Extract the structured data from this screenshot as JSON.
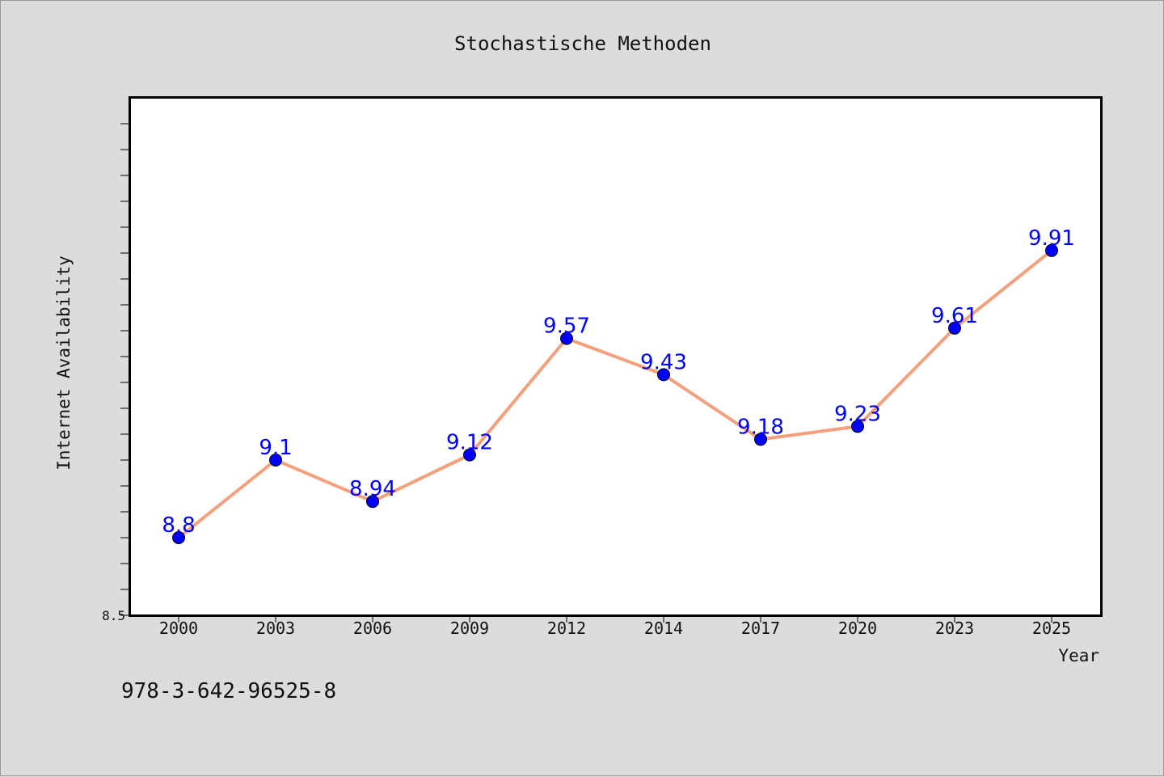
{
  "footer": {
    "isbn": "978-3-642-96525-8"
  },
  "colors": {
    "background": "#dcdcdc",
    "plot_background": "#ffffff",
    "line": "#f4a07c",
    "marker": "#0000ff",
    "data_label": "#0000ff"
  },
  "chart_data": {
    "type": "line",
    "title": "Stochastische Methoden",
    "xlabel": "Year",
    "ylabel": "Internet Availability",
    "categories": [
      "2000",
      "2003",
      "2006",
      "2009",
      "2012",
      "2014",
      "2017",
      "2020",
      "2023",
      "2025"
    ],
    "series": [
      {
        "values": [
          8.8,
          9.1,
          8.94,
          9.12,
          9.57,
          9.43,
          9.18,
          9.23,
          9.61,
          9.91
        ],
        "labels": [
          "8.8",
          "9.1",
          "8.94",
          "9.12",
          "9.57",
          "9.43",
          "9.18",
          "9.23",
          "9.61",
          "9.91"
        ]
      }
    ],
    "ylim": [
      8.5,
      10.5
    ],
    "yticks": [
      {
        "value": 8.5,
        "label": "8.5"
      }
    ],
    "yminor_step": 0.1,
    "grid": false,
    "legend": "none"
  }
}
